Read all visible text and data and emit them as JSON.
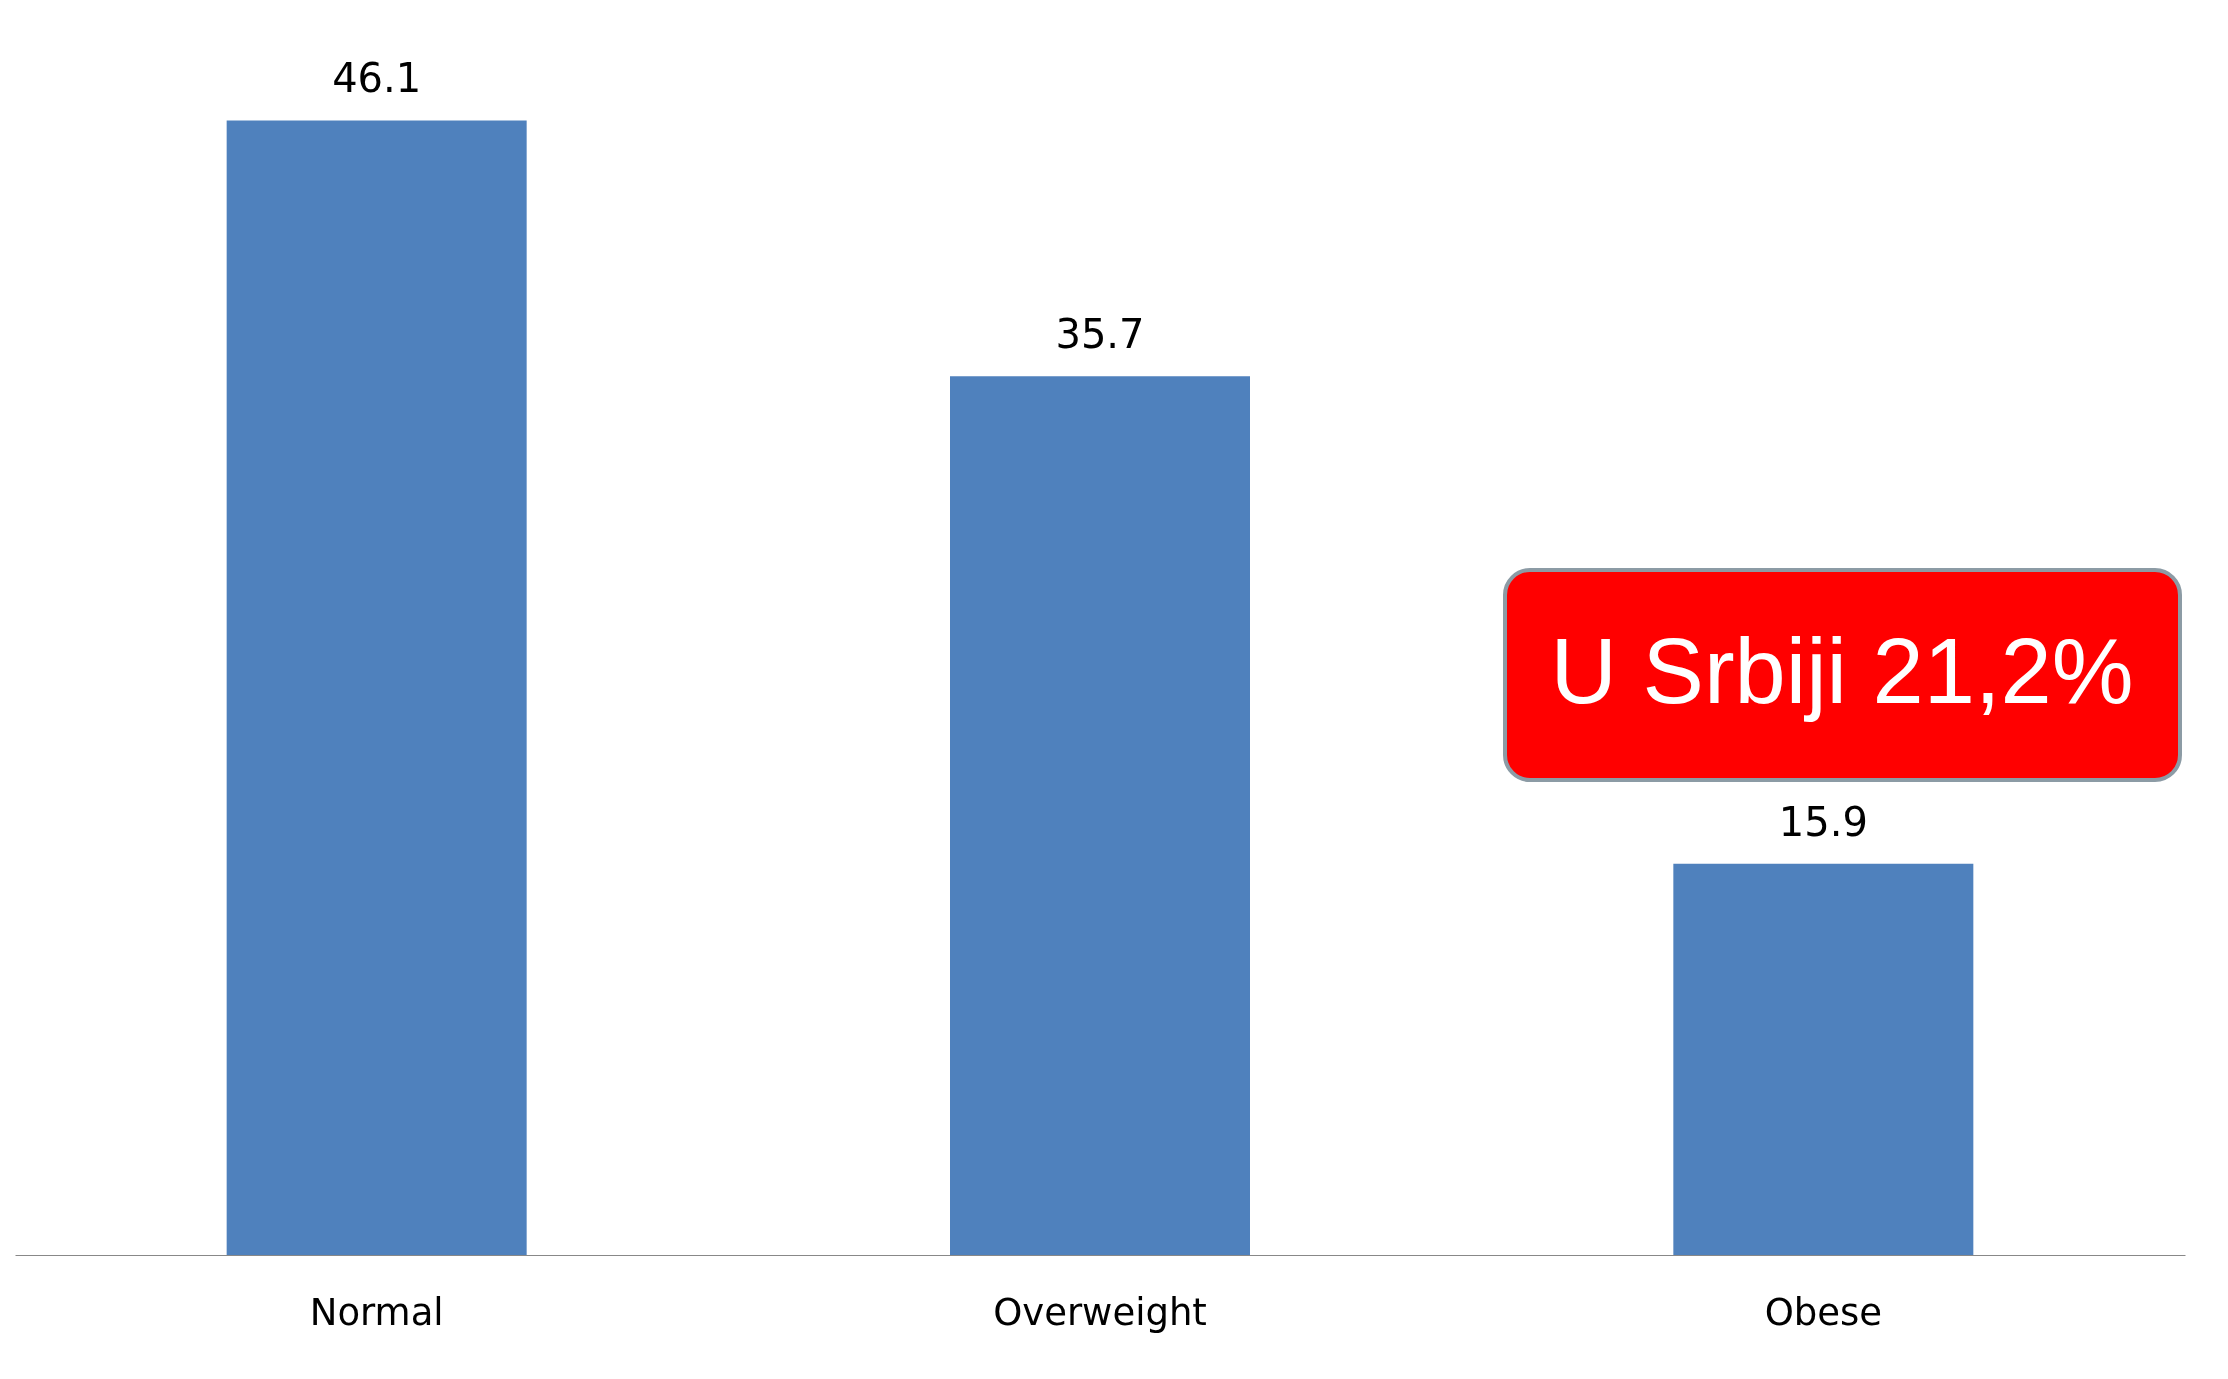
{
  "chart_data": {
    "type": "bar",
    "categories": [
      "Normal",
      "Overweight",
      "Obese"
    ],
    "values": [
      46.1,
      35.7,
      15.9
    ],
    "color": "#4f81bd",
    "data_labels": true,
    "annotations": [
      "U Srbiji 21,2%"
    ]
  }
}
